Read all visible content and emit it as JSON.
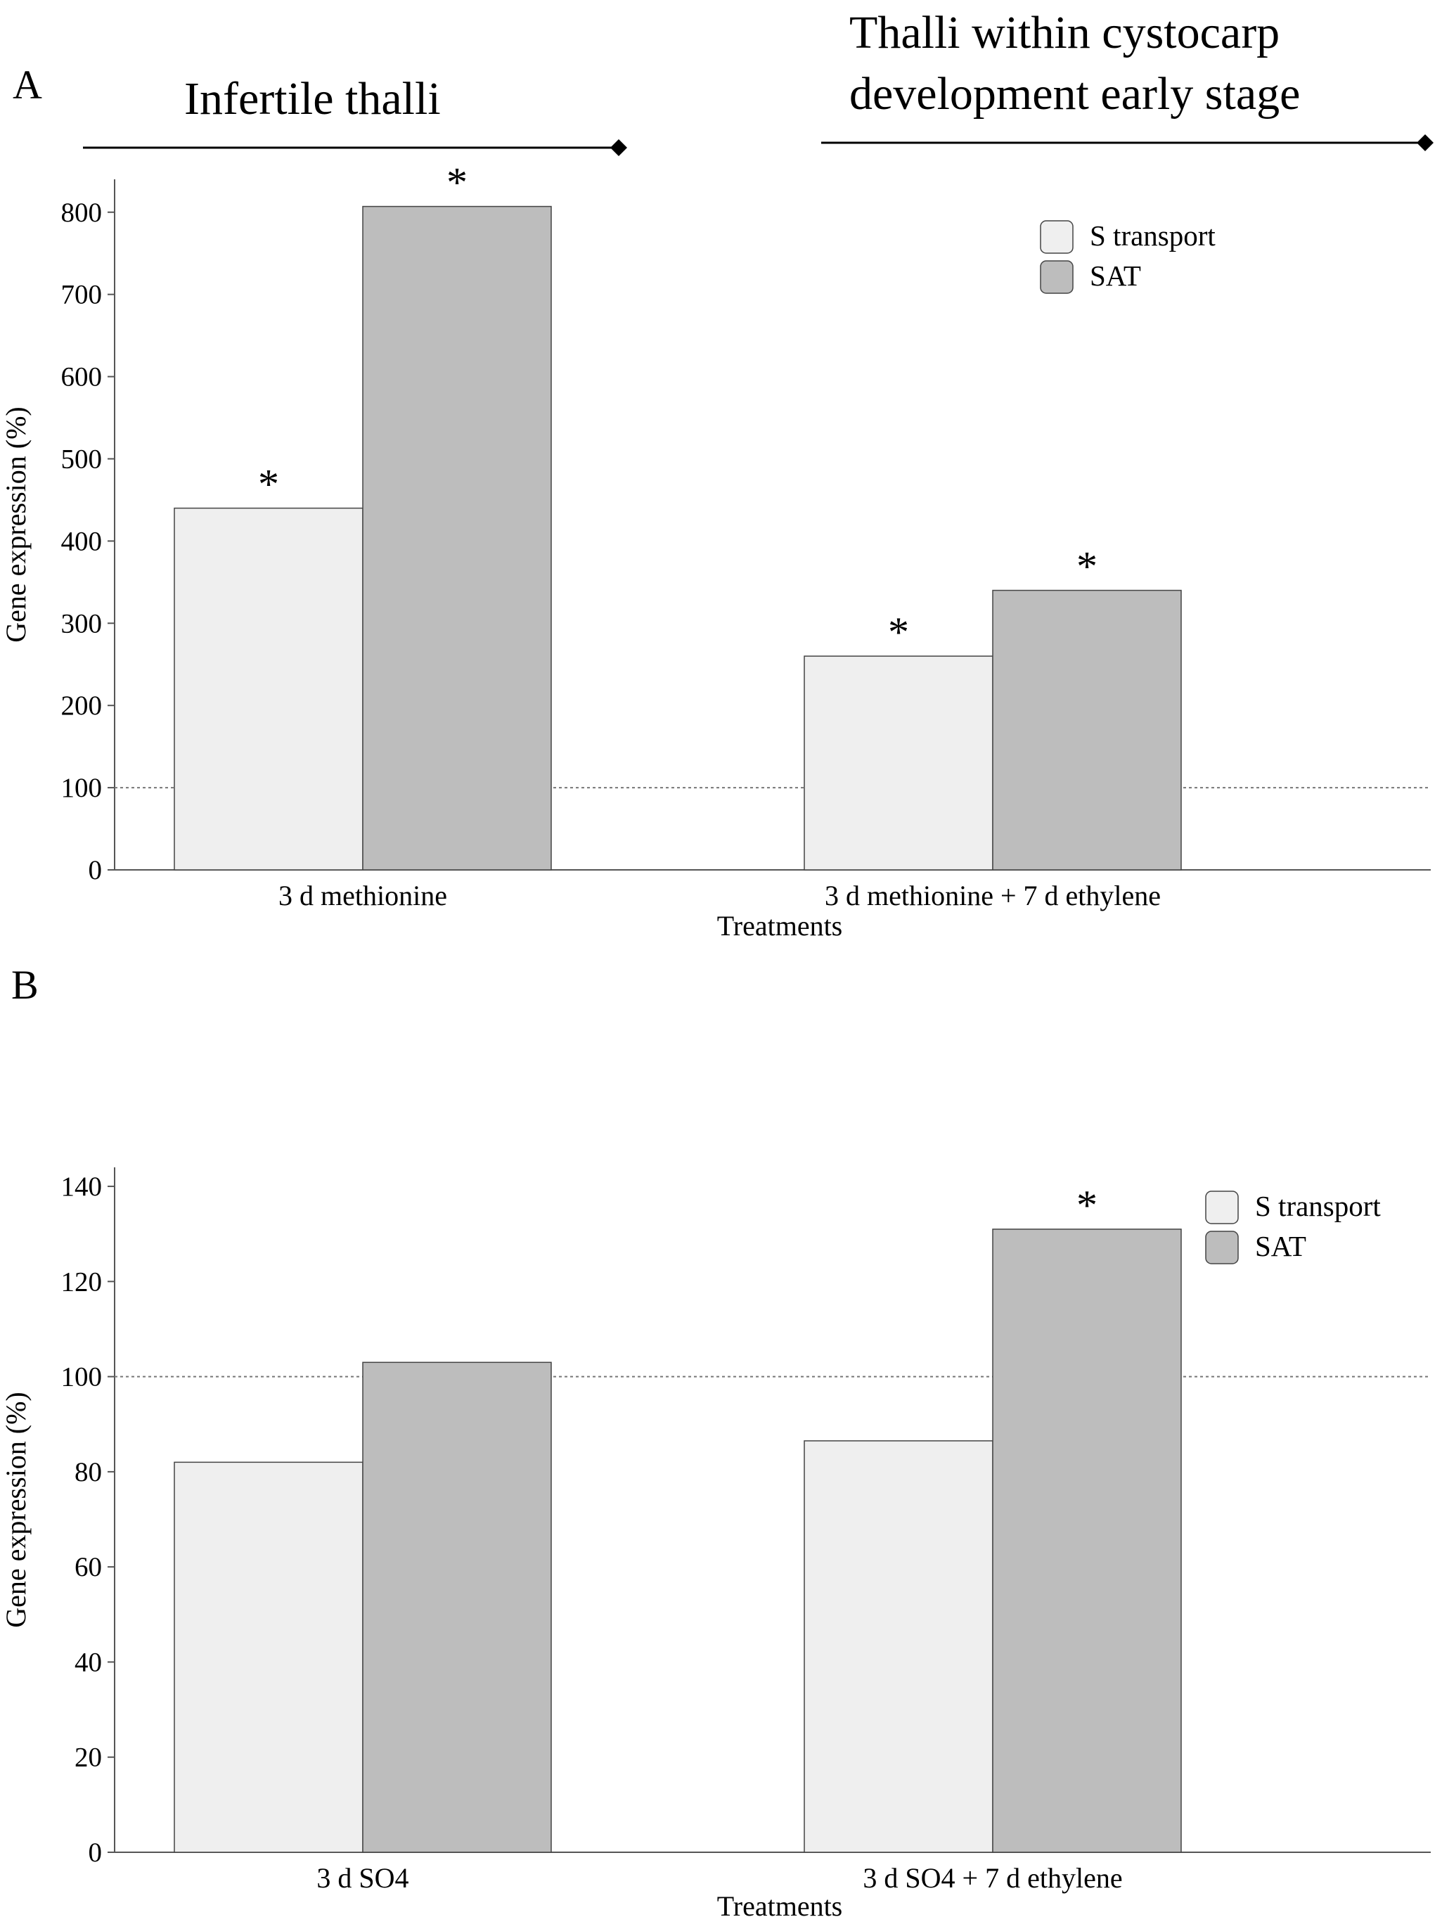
{
  "chart_data": [
    {
      "panel": "A",
      "type": "bar",
      "headers": [
        {
          "lines": [
            "Infertile thalli"
          ]
        },
        {
          "lines": [
            "Thalli within cystocarp",
            "development  early stage"
          ]
        }
      ],
      "categories": [
        "3 d methionine",
        "3 d methionine + 7 d ethylene"
      ],
      "series": [
        {
          "name": "S transport",
          "values": [
            440,
            260
          ],
          "significant": [
            true,
            true
          ]
        },
        {
          "name": "SAT",
          "values": [
            807,
            340
          ],
          "significant": [
            true,
            true
          ]
        }
      ],
      "significance_marker": "*",
      "reference_line": 100,
      "ylim": [
        0,
        840
      ],
      "yticks": [
        0,
        100,
        200,
        300,
        400,
        500,
        600,
        700,
        800
      ],
      "xlabel": "Treatments",
      "ylabel": "Gene expression (%)",
      "legend_position": "top-right"
    },
    {
      "panel": "B",
      "type": "bar",
      "headers": [],
      "categories": [
        "3 d SO4",
        "3 d  SO4 + 7 d ethylene"
      ],
      "series": [
        {
          "name": "S transport",
          "values": [
            82,
            86.5
          ],
          "significant": [
            false,
            false
          ]
        },
        {
          "name": "SAT",
          "values": [
            103,
            131
          ],
          "significant": [
            false,
            true
          ]
        }
      ],
      "significance_marker": "*",
      "reference_line": 100,
      "ylim": [
        0,
        144
      ],
      "yticks": [
        0,
        20,
        40,
        60,
        80,
        100,
        120,
        140
      ],
      "xlabel": "Treatments",
      "ylabel": "Gene expression (%)",
      "legend_position": "top-right"
    }
  ],
  "colors": {
    "S transport": "#efefef",
    "SAT": "#bdbdbd",
    "outline": "#444444",
    "reference_line": "#777777"
  }
}
